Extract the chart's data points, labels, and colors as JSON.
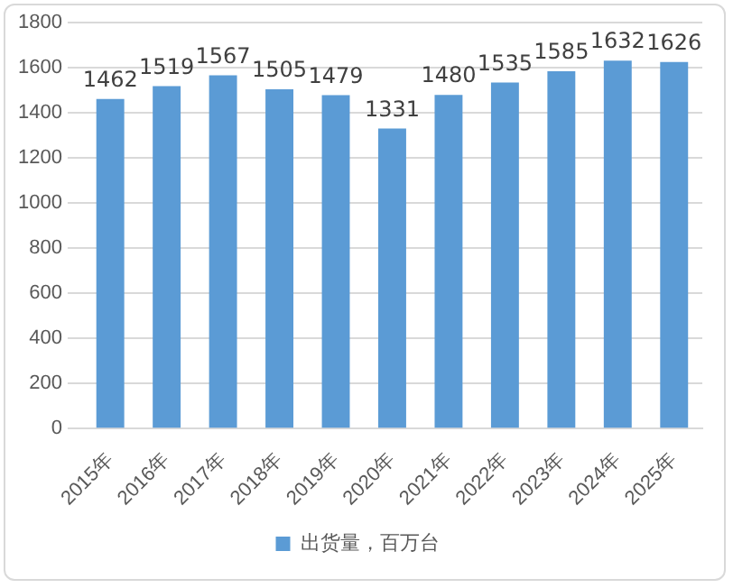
{
  "chart_data": {
    "type": "bar",
    "categories": [
      "2015年",
      "2016年",
      "2017年",
      "2018年",
      "2019年",
      "2020年",
      "2021年",
      "2022年",
      "2023年",
      "2024年",
      "2025年"
    ],
    "series": [
      {
        "name": "出货量，百万台",
        "color": "#5b9bd5",
        "values": [
          1462,
          1519,
          1567,
          1505,
          1479,
          1331,
          1480,
          1535,
          1585,
          1632,
          1626
        ]
      }
    ],
    "ylim": [
      0,
      1800
    ],
    "yticks": [
      0,
      200,
      400,
      600,
      800,
      1000,
      1200,
      1400,
      1600,
      1800
    ],
    "grid": "y",
    "legend": "bottom",
    "data_labels": true
  }
}
